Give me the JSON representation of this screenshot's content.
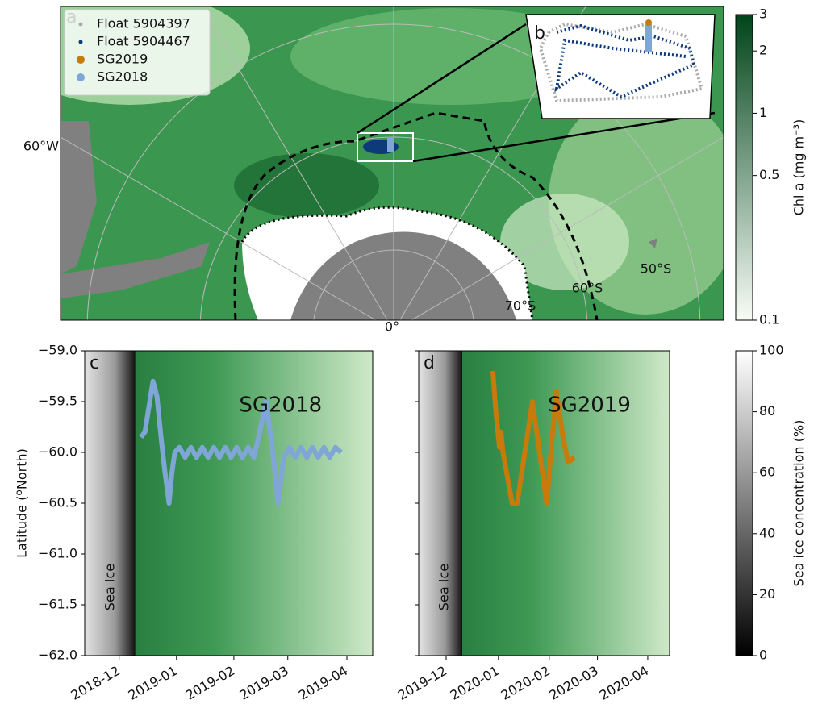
{
  "chart_data": [
    {
      "type": "map",
      "panel_label": "a",
      "inset_label": "b",
      "graticule_labels": [
        "60°W",
        "0°",
        "70°S",
        "60°S",
        "50°S"
      ],
      "series": [
        {
          "name": "Float 5904397",
          "color": "#aaaaaa"
        },
        {
          "name": "Float 5904467",
          "color": "#0d3a78"
        },
        {
          "name": "SG2019",
          "color": "#c87a0a"
        },
        {
          "name": "SG2018",
          "color": "#7fa6d6"
        }
      ]
    },
    {
      "type": "colorbar",
      "label": "Chl a (mg m⁻³)",
      "log_scale": true,
      "ylim": [
        0.1,
        3
      ],
      "yticks": [
        0.1,
        0.5,
        1,
        2,
        3
      ],
      "colors": [
        "#f7fcf5",
        "#00441b"
      ]
    },
    {
      "type": "line",
      "panel_label": "c",
      "region_label": "Sea Ice",
      "ylabel": "Latitude (ºNorth)",
      "xlim": [
        -0.6,
        4.42
      ],
      "xticks": [
        {
          "value": 0,
          "label": "2018-12"
        },
        {
          "value": 1,
          "label": "2019-01"
        },
        {
          "value": 2,
          "label": "2019-02"
        },
        {
          "value": 2.94,
          "label": "2019-03"
        },
        {
          "value": 3.97,
          "label": "2019-04"
        }
      ],
      "ylim": [
        -62,
        -59
      ],
      "yticks": [
        {
          "value": -62,
          "label": "−62.0"
        },
        {
          "value": -61.5,
          "label": "−61.5"
        },
        {
          "value": -61,
          "label": "−61.0"
        },
        {
          "value": -60.5,
          "label": "−60.5"
        },
        {
          "value": -60,
          "label": "−60.0"
        },
        {
          "value": -59.5,
          "label": "−59.5"
        },
        {
          "value": -59,
          "label": "−59.0"
        }
      ],
      "series": [
        {
          "name": "SG2018",
          "color": "#7fa6d6",
          "x": [
            0.38,
            0.45,
            0.52,
            0.59,
            0.66,
            0.73,
            0.8,
            0.87,
            0.92,
            0.97,
            1.05,
            1.15,
            1.25,
            1.35,
            1.45,
            1.55,
            1.65,
            1.75,
            1.85,
            1.95,
            2.05,
            2.15,
            2.25,
            2.35,
            2.45,
            2.56,
            2.66,
            2.77,
            2.87,
            2.97,
            3.07,
            3.17,
            3.27,
            3.37,
            3.47,
            3.57,
            3.67,
            3.77,
            3.87
          ],
          "values": [
            -59.85,
            -59.8,
            -59.55,
            -59.3,
            -59.45,
            -59.85,
            -60.2,
            -60.5,
            -60.2,
            -60.0,
            -59.95,
            -60.05,
            -59.95,
            -60.05,
            -59.95,
            -60.05,
            -59.95,
            -60.05,
            -59.95,
            -60.05,
            -59.95,
            -60.05,
            -59.95,
            -60.05,
            -59.8,
            -59.5,
            -59.9,
            -60.5,
            -60.05,
            -59.95,
            -60.05,
            -59.95,
            -60.05,
            -59.95,
            -60.05,
            -59.95,
            -60.05,
            -59.95,
            -60.0
          ]
        }
      ]
    },
    {
      "type": "line",
      "panel_label": "d",
      "region_label": "Sea Ice",
      "xlim": [
        -0.54,
        4.4
      ],
      "xticks": [
        {
          "value": 0,
          "label": "2019-12"
        },
        {
          "value": 1.03,
          "label": "2020-01"
        },
        {
          "value": 2.03,
          "label": "2020-02"
        },
        {
          "value": 2.98,
          "label": "2020-03"
        },
        {
          "value": 3.97,
          "label": "2020-04"
        }
      ],
      "ylim": [
        -62,
        -59
      ],
      "yticks": [
        -62,
        -61.5,
        -61,
        -60.5,
        -60,
        -59.5,
        -59
      ],
      "series": [
        {
          "name": "SG2019",
          "color": "#c87a0a",
          "x": [
            0.92,
            0.98,
            1.05,
            1.08,
            1.12,
            1.3,
            1.4,
            1.55,
            1.7,
            1.84,
            1.98,
            2.08,
            2.17,
            2.3,
            2.4,
            2.52
          ],
          "values": [
            -59.2,
            -59.6,
            -59.95,
            -59.8,
            -60.0,
            -60.5,
            -60.5,
            -60.0,
            -59.5,
            -60.0,
            -60.5,
            -59.9,
            -59.4,
            -59.85,
            -60.1,
            -60.05
          ]
        }
      ]
    },
    {
      "type": "colorbar",
      "label": "Sea ice concentration (%)",
      "log_scale": false,
      "ylim": [
        0,
        100
      ],
      "yticks": [
        0,
        20,
        40,
        60,
        80,
        100
      ],
      "colors": [
        "#000000",
        "#ffffff"
      ]
    }
  ]
}
